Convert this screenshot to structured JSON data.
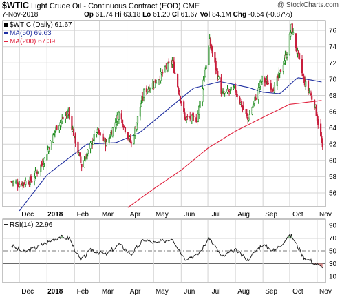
{
  "header": {
    "symbol": "$WTIC",
    "name": "Light Crude Oil - Continuous Contract (EOD)",
    "exchange": "CME",
    "date": "7-Nov-2018",
    "watermark": "@ StockCharts.com",
    "quote": {
      "open_label": "Op",
      "open": "61.74",
      "high_label": "Hi",
      "high": "63.18",
      "low_label": "Lo",
      "low": "61.20",
      "close_label": "Cl",
      "close": "61.67",
      "volume_label": "Vol",
      "volume": "84.1M",
      "change_label": "Chg",
      "change": "-0.54 (-0.87%)"
    }
  },
  "legend": {
    "price": "$WTIC (Daily) 61.67",
    "ma50": "MA(50) 69.63",
    "ma200": "MA(200) 67.39",
    "rsi": "RSI(14) 22.96"
  },
  "colors": {
    "up": "#1a8a1a",
    "down": "#c81e3c",
    "ma50": "#1f2fa0",
    "ma200": "#e0203c",
    "rsi": "#222222",
    "rsi_overbought_fill": "#8ab88a",
    "rsi_oversold_fill": "#d88a8a",
    "grid": "#d4d4d4"
  },
  "chart_data": [
    {
      "type": "candlestick",
      "series_name": "$WTIC (Daily)",
      "x_ticks": [
        "Dec",
        "2018",
        "Feb",
        "Mar",
        "Apr",
        "May",
        "Jun",
        "Jul",
        "Aug",
        "Sep",
        "Oct",
        "Nov"
      ],
      "y_ticks": [
        56,
        58,
        60,
        62,
        64,
        66,
        68,
        70,
        72,
        74,
        76
      ],
      "ylim": [
        54.3,
        77.2
      ],
      "grid": true,
      "monthly_close_anchors": [
        {
          "date": "2017-11-22",
          "close": 57.4
        },
        {
          "date": "2017-11-30",
          "close": 57.1
        },
        {
          "date": "2017-12-15",
          "close": 57.6
        },
        {
          "date": "2017-12-29",
          "close": 60.1
        },
        {
          "date": "2018-01-12",
          "close": 64.2
        },
        {
          "date": "2018-01-25",
          "close": 65.9
        },
        {
          "date": "2018-02-09",
          "close": 59.3
        },
        {
          "date": "2018-02-26",
          "close": 63.6
        },
        {
          "date": "2018-03-09",
          "close": 62.0
        },
        {
          "date": "2018-03-23",
          "close": 65.8
        },
        {
          "date": "2018-04-06",
          "close": 62.0
        },
        {
          "date": "2018-04-20",
          "close": 68.4
        },
        {
          "date": "2018-05-04",
          "close": 69.8
        },
        {
          "date": "2018-05-22",
          "close": 72.2
        },
        {
          "date": "2018-06-05",
          "close": 65.2
        },
        {
          "date": "2018-06-19",
          "close": 65.1
        },
        {
          "date": "2018-07-03",
          "close": 74.6
        },
        {
          "date": "2018-07-17",
          "close": 68.1
        },
        {
          "date": "2018-07-31",
          "close": 68.8
        },
        {
          "date": "2018-08-15",
          "close": 65.0
        },
        {
          "date": "2018-08-31",
          "close": 70.0
        },
        {
          "date": "2018-09-14",
          "close": 68.9
        },
        {
          "date": "2018-09-28",
          "close": 73.3
        },
        {
          "date": "2018-10-03",
          "close": 76.4
        },
        {
          "date": "2018-10-17",
          "close": 69.8
        },
        {
          "date": "2018-10-29",
          "close": 67.0
        },
        {
          "date": "2018-11-07",
          "close": 61.67
        }
      ],
      "moving_averages": [
        {
          "name": "MA(50)",
          "last": 69.63,
          "points": [
            [
              "2017-12-01",
              53.8
            ],
            [
              "2018-01-01",
              58.2
            ],
            [
              "2018-02-15",
              62.0
            ],
            [
              "2018-03-20",
              62.2
            ],
            [
              "2018-04-15",
              63.4
            ],
            [
              "2018-05-15",
              66.1
            ],
            [
              "2018-06-15",
              68.9
            ],
            [
              "2018-07-15",
              69.7
            ],
            [
              "2018-08-15",
              69.0
            ],
            [
              "2018-09-01",
              68.4
            ],
            [
              "2018-09-20",
              68.2
            ],
            [
              "2018-10-10",
              70.2
            ],
            [
              "2018-11-07",
              69.63
            ]
          ]
        },
        {
          "name": "MA(200)",
          "last": 67.39,
          "points": [
            [
              "2018-04-02",
              54.2
            ],
            [
              "2018-05-01",
              56.5
            ],
            [
              "2018-06-01",
              58.8
            ],
            [
              "2018-07-01",
              61.5
            ],
            [
              "2018-08-01",
              63.6
            ],
            [
              "2018-09-01",
              65.3
            ],
            [
              "2018-10-01",
              66.9
            ],
            [
              "2018-11-07",
              67.39
            ]
          ]
        }
      ]
    },
    {
      "type": "line",
      "series_name": "RSI(14)",
      "y_ticks": [
        10,
        30,
        50,
        70,
        90
      ],
      "ylim": [
        0,
        100
      ],
      "reference_lines": [
        30,
        70
      ],
      "dashed_line": 50,
      "last": 22.96,
      "points": [
        [
          "2017-11-22",
          58
        ],
        [
          "2017-12-06",
          48
        ],
        [
          "2017-12-20",
          55
        ],
        [
          "2018-01-05",
          66
        ],
        [
          "2018-01-15",
          72
        ],
        [
          "2018-01-26",
          70
        ],
        [
          "2018-02-08",
          34
        ],
        [
          "2018-02-20",
          52
        ],
        [
          "2018-03-08",
          44
        ],
        [
          "2018-03-23",
          60
        ],
        [
          "2018-04-06",
          45
        ],
        [
          "2018-04-20",
          68
        ],
        [
          "2018-05-04",
          62
        ],
        [
          "2018-05-22",
          70
        ],
        [
          "2018-06-05",
          38
        ],
        [
          "2018-06-19",
          43
        ],
        [
          "2018-07-03",
          70
        ],
        [
          "2018-07-17",
          40
        ],
        [
          "2018-07-31",
          52
        ],
        [
          "2018-08-15",
          36
        ],
        [
          "2018-08-31",
          60
        ],
        [
          "2018-09-14",
          50
        ],
        [
          "2018-09-28",
          70
        ],
        [
          "2018-10-03",
          74
        ],
        [
          "2018-10-17",
          40
        ],
        [
          "2018-10-29",
          31
        ],
        [
          "2018-11-07",
          22.96
        ]
      ]
    }
  ]
}
